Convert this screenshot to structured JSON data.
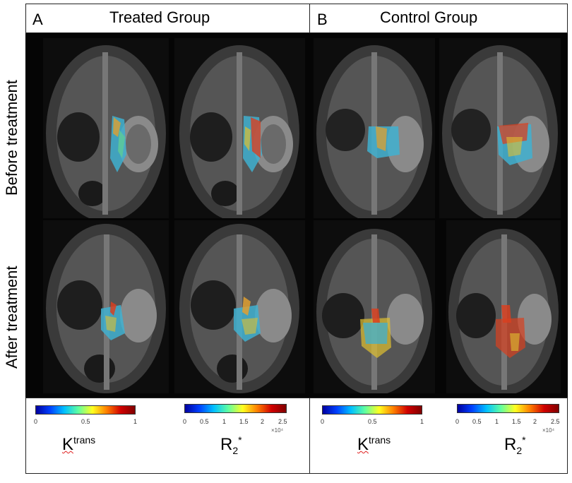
{
  "panels": {
    "a": {
      "letter": "A",
      "title": "Treated Group"
    },
    "b": {
      "letter": "B",
      "title": "Control Group"
    }
  },
  "rows": {
    "before": "Before treatment",
    "after": "After treatment"
  },
  "colorbars": {
    "ktrans": {
      "ticks": [
        "0",
        "0.5",
        "1"
      ],
      "label_main": "K",
      "label_sup": "trans"
    },
    "r2": {
      "ticks": [
        "0",
        "0.5",
        "1",
        "1.5",
        "2",
        "2.5"
      ],
      "exponent": "×10⁴",
      "label_main": "R",
      "label_sub": "2",
      "label_sup": "*"
    }
  },
  "colors": {
    "scan_bg": "#0d0d0d",
    "overlay_cool": "#3fb0d0",
    "overlay_warm": "#e0a030",
    "overlay_hot": "#d84020"
  }
}
